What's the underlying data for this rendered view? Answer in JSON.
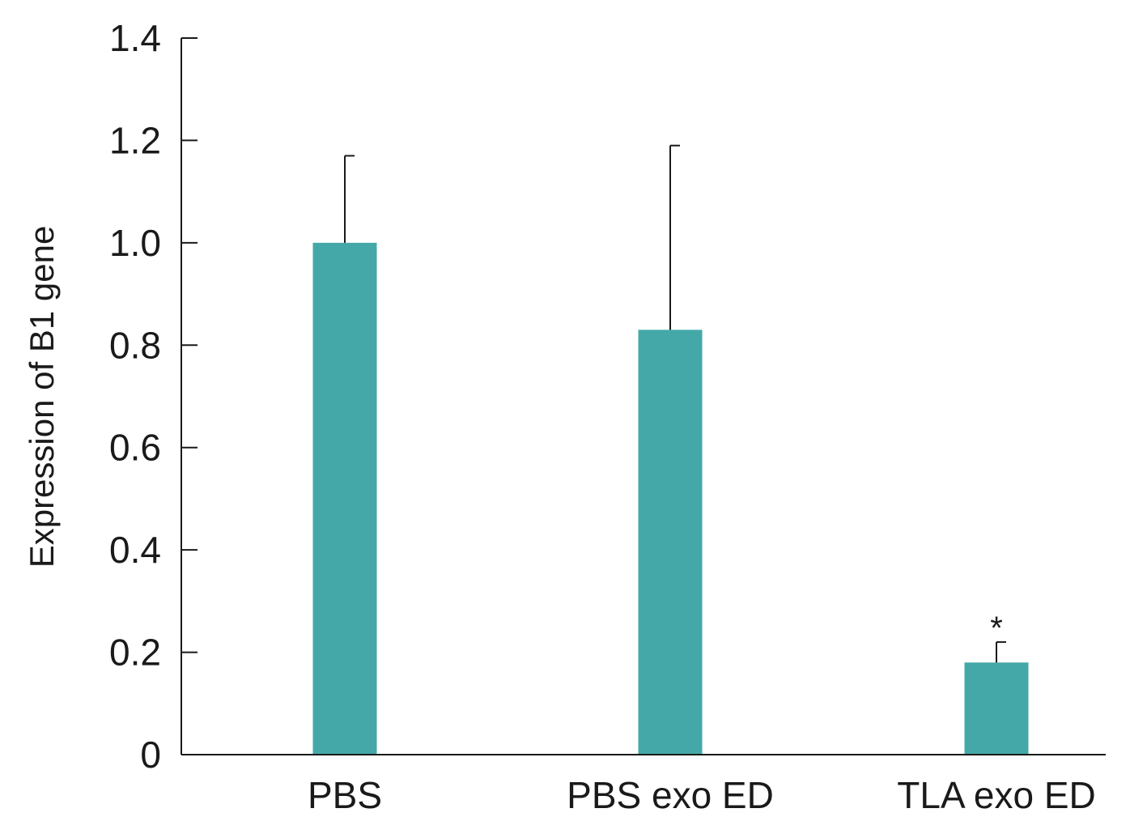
{
  "chart_data": {
    "type": "bar",
    "title": "",
    "xlabel": "",
    "ylabel": "Expression of B1 gene",
    "ylim": [
      0,
      1.4
    ],
    "yticks": [
      0,
      0.2,
      0.4,
      0.6,
      0.8,
      1.0,
      1.2,
      1.4
    ],
    "ytick_labels": [
      "0",
      "0.2",
      "0.4",
      "0.6",
      "0.8",
      "1.0",
      "1.2",
      "1.4"
    ],
    "categories": [
      "PBS",
      "PBS exo ED",
      "TLA exo ED"
    ],
    "values": [
      1.0,
      0.83,
      0.18
    ],
    "errors": [
      0.17,
      0.36,
      0.04
    ],
    "annotations": [
      "",
      "",
      "*"
    ],
    "bar_color": "#45A8A8",
    "grid": false,
    "legend": "none"
  }
}
